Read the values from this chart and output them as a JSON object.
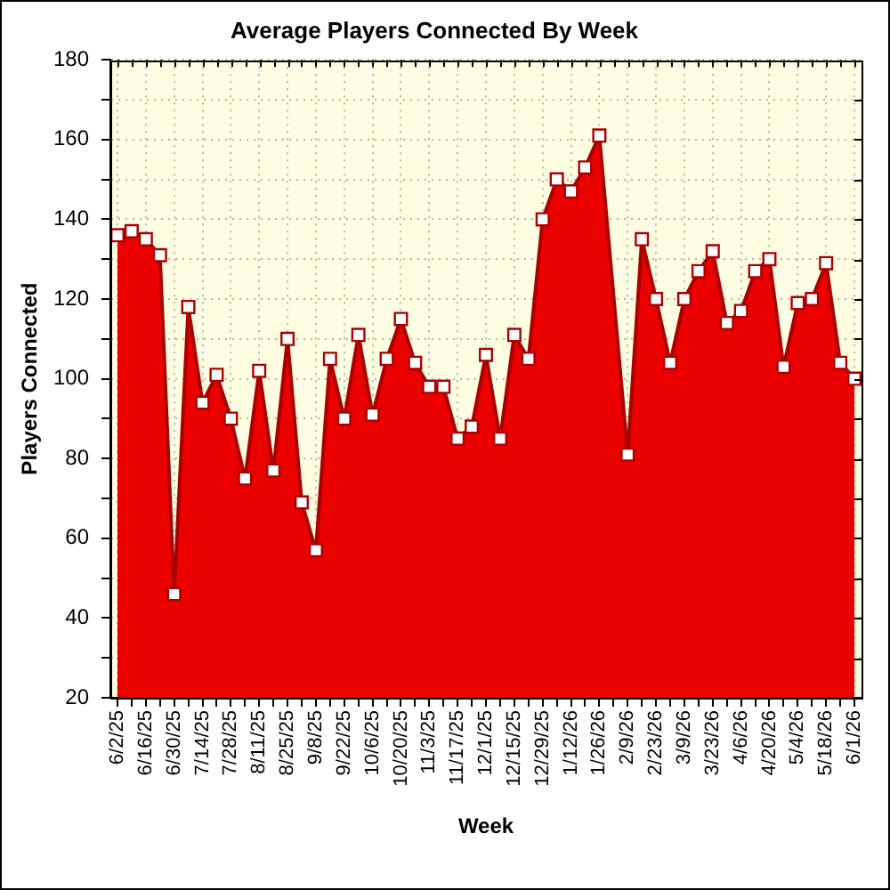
{
  "chart_data": {
    "type": "area",
    "title": "Average Players Connected By Week",
    "xlabel": "Week",
    "ylabel": "Players Connected",
    "categories": [
      "6/2/25",
      null,
      "6/16/25",
      null,
      "6/30/25",
      null,
      "7/14/25",
      null,
      "7/28/25",
      null,
      "8/11/25",
      null,
      "8/25/25",
      null,
      "9/8/25",
      null,
      "9/22/25",
      null,
      "10/6/25",
      null,
      "10/20/25",
      null,
      "11/3/25",
      null,
      "11/17/25",
      null,
      "12/1/25",
      null,
      "12/15/25",
      null,
      "12/29/25",
      null,
      "1/12/26",
      null,
      "1/26/26",
      null,
      "2/9/26",
      null,
      "2/23/26",
      null,
      "3/9/26",
      null,
      "3/23/26",
      null,
      "4/6/26",
      null,
      "4/20/26",
      null,
      "5/4/26",
      null,
      "5/18/26",
      null,
      "6/1/26"
    ],
    "values": [
      136,
      137,
      135,
      131,
      46,
      118,
      94,
      101,
      90,
      75,
      102,
      77,
      110,
      69,
      57,
      105,
      90,
      111,
      91,
      105,
      115,
      104,
      98,
      98,
      85,
      88,
      106,
      85,
      111,
      105,
      140,
      150,
      147,
      153,
      161,
      null,
      81,
      135,
      120,
      104,
      120,
      127,
      132,
      114,
      117,
      127,
      130,
      103,
      119,
      120,
      129,
      104,
      100
    ],
    "color": "#eb0000",
    "ylim": [
      20,
      180
    ],
    "yticks": [
      20,
      {
        "value": 30,
        "label": null
      },
      40,
      {
        "value": 50,
        "label": null
      },
      60,
      {
        "value": 70,
        "label": null
      },
      80,
      {
        "value": 90,
        "label": null
      },
      100,
      {
        "value": 110,
        "label": null
      },
      120,
      {
        "value": 130,
        "label": null
      },
      140,
      {
        "value": 150,
        "label": null
      },
      160,
      {
        "value": 170,
        "label": null
      },
      180
    ],
    "grid": true,
    "marker": "square"
  }
}
